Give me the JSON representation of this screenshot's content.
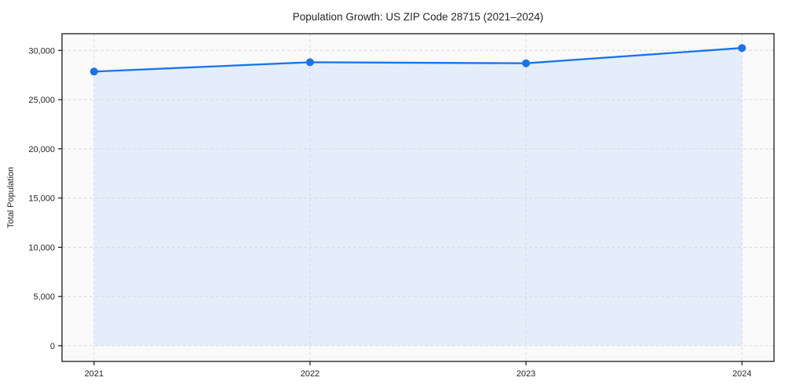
{
  "chart_data": {
    "type": "line",
    "title": "Population Growth: US ZIP Code 28715 (2021–2024)",
    "xlabel": "",
    "ylabel": "Total Population",
    "x": [
      2021,
      2022,
      2023,
      2024
    ],
    "x_tick_labels": [
      "2021",
      "2022",
      "2023",
      "2024"
    ],
    "series": [
      {
        "name": "Total Population",
        "values": [
          27850,
          28800,
          28700,
          30250
        ]
      }
    ],
    "y_ticks": [
      0,
      5000,
      10000,
      15000,
      20000,
      25000,
      30000
    ],
    "y_tick_labels": [
      "0",
      "5,000",
      "10,000",
      "15,000",
      "20,000",
      "25,000",
      "30,000"
    ],
    "ylim": [
      -1600,
      31700
    ],
    "grid": true,
    "grid_style": "dashed",
    "legend_position": "none",
    "area_fill": true,
    "marker": "circle",
    "colors": {
      "line": "#1a73e8",
      "marker": "#1a73e8",
      "fill": "#e4eefb",
      "grid": "#d9d9d9",
      "spine": "#1a1a1a",
      "plot_bg": "#fafafa",
      "figure_bg": "#ffffff",
      "text": "#262626"
    }
  }
}
